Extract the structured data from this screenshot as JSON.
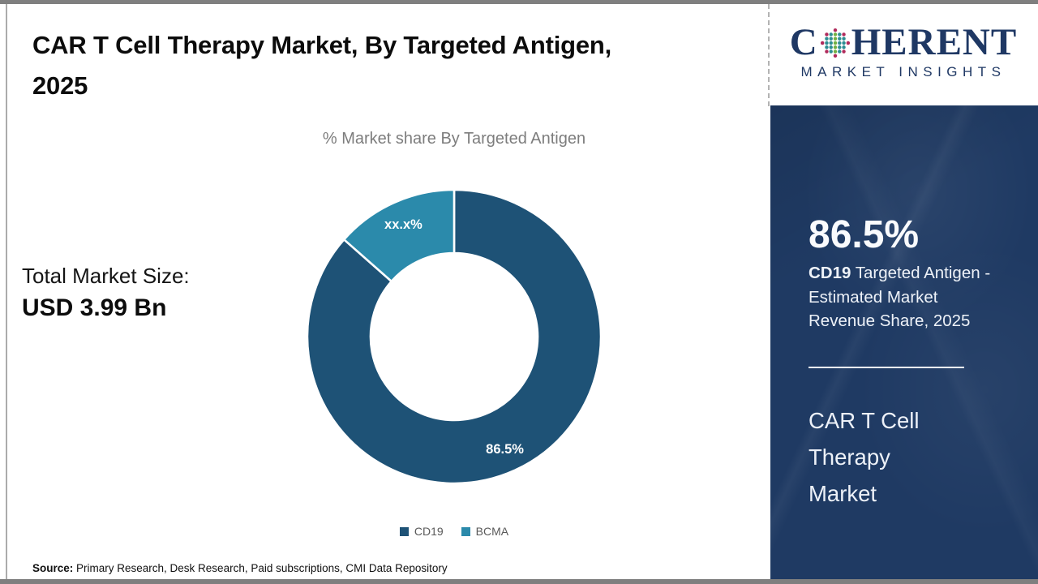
{
  "header": {
    "title_line1": "CAR T Cell Therapy Market, By Targeted Antigen,",
    "title_line2": "2025"
  },
  "logo": {
    "name": "Coherent Market Insights",
    "word_start": "C",
    "word_end": "HERENT",
    "subtitle": "MARKET INSIGHTS",
    "colors": {
      "navy": "#1f3864",
      "teal": "#2d8e93",
      "green": "#72b043",
      "crimson": "#b02a5b"
    }
  },
  "main": {
    "chart_subtitle": "% Market share By Targeted Antigen",
    "total_market_label": "Total Market Size:",
    "total_market_value": "USD 3.99 Bn",
    "source_label": "Source:",
    "source_text": " Primary Research, Desk Research, Paid subscriptions, CMI Data Repository"
  },
  "sidebar": {
    "stat_value": "86.5%",
    "stat_desc_bold": "CD19",
    "stat_desc_rest": " Targeted Antigen - Estimated Market Revenue Share, 2025",
    "market_name": "CAR T Cell Therapy Market",
    "background": "#1f3a63"
  },
  "chart_data": {
    "type": "pie",
    "donut": true,
    "title": "% Market share By Targeted Antigen",
    "categories": [
      "CD19",
      "BCMA"
    ],
    "values": [
      86.5,
      13.5
    ],
    "slice_labels": [
      "86.5%",
      "xx.x%"
    ],
    "colors": [
      "#1e5276",
      "#2b8aab"
    ],
    "label_color": "#ffffff",
    "separator_color": "#ffffff",
    "legend_position": "bottom",
    "legend_text_color": "#595959",
    "start_angle_deg": 0,
    "outer_radius": 181,
    "inner_radius": 103
  }
}
